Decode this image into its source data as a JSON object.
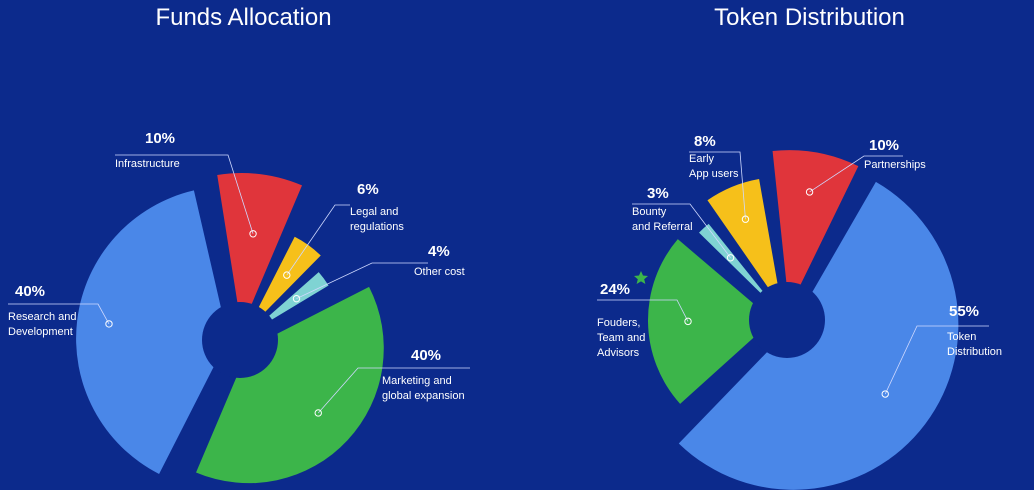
{
  "colors": {
    "background": "#0c2a8c",
    "hole": "#0c2a8c",
    "star": "#3cb54a"
  },
  "chart_data": [
    {
      "type": "pie",
      "title": "Funds Allocation",
      "slices": [
        {
          "name": "Research and Development",
          "value": 40,
          "percent_label": "40%",
          "label_lines": [
            "Research and",
            "Development"
          ],
          "color": "#4a87e8"
        },
        {
          "name": "Infrastructure",
          "value": 10,
          "percent_label": "10%",
          "label_lines": [
            "Infrastructure"
          ],
          "color": "#e0353b"
        },
        {
          "name": "Legal and regulations",
          "value": 6,
          "percent_label": "6%",
          "label_lines": [
            "Legal and",
            "regulations"
          ],
          "color": "#f6c01a"
        },
        {
          "name": "Other cost",
          "value": 4,
          "percent_label": "4%",
          "label_lines": [
            "Other cost"
          ],
          "color": "#7fd3d3"
        },
        {
          "name": "Marketing and global expansion",
          "value": 40,
          "percent_label": "40%",
          "label_lines": [
            "Marketing and",
            "global expansion"
          ],
          "color": "#3cb54a"
        }
      ]
    },
    {
      "type": "pie",
      "title": "Token Distribution",
      "slices": [
        {
          "name": "Token Distribution",
          "value": 55,
          "percent_label": "55%",
          "label_lines": [
            "Token",
            "Distribution"
          ],
          "color": "#4a87e8"
        },
        {
          "name": "Fouders, Team and Advisors",
          "value": 24,
          "percent_label": "24%",
          "label_lines": [
            "Fouders,",
            "Team and",
            "Advisors"
          ],
          "color": "#3cb54a"
        },
        {
          "name": "Bounty and Referral",
          "value": 3,
          "percent_label": "3%",
          "label_lines": [
            "Bounty",
            "and Referral"
          ],
          "color": "#7fd3d3"
        },
        {
          "name": "Early App users",
          "value": 8,
          "percent_label": "8%",
          "label_lines": [
            "Early",
            "App users"
          ],
          "color": "#f6c01a"
        },
        {
          "name": "Partnerships",
          "value": 10,
          "percent_label": "10%",
          "label_lines": [
            "Partnerships"
          ],
          "color": "#e0353b"
        }
      ]
    }
  ]
}
